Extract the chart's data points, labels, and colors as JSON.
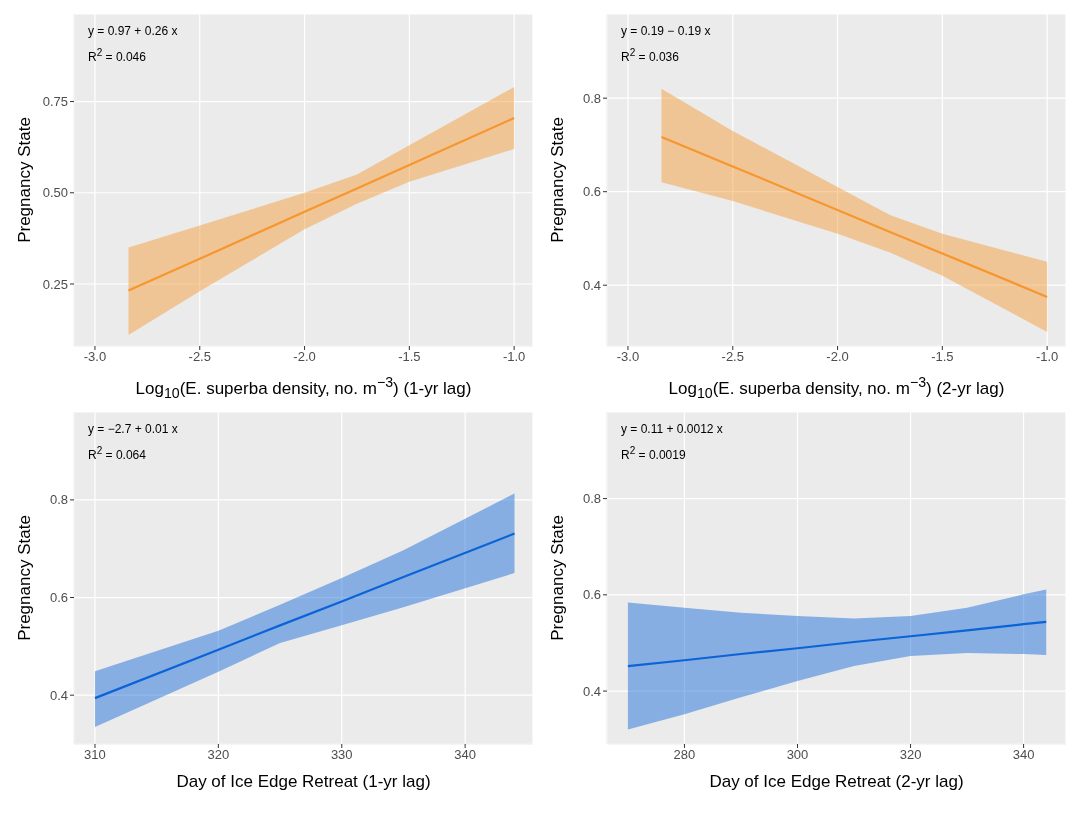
{
  "chart_data": [
    {
      "type": "line",
      "xlabel": "Log$_{10}$(E. superba density, no. m$^{−3}$) (1-yr lag)",
      "ylabel": "Pregnancy State",
      "annotations": [
        "y = 0.97 + 0.26 x",
        "R$^{2}$ = 0.046"
      ],
      "x": [
        -2.84,
        -2.5,
        -2.0,
        -1.75,
        -1.5,
        -1.0
      ],
      "series": [
        {
          "color": "#f7962e",
          "values": [
            0.232,
            0.319,
            0.448,
            0.512,
            0.576,
            0.705
          ],
          "lower": [
            0.11,
            0.23,
            0.4,
            0.47,
            0.53,
            0.62
          ],
          "upper": [
            0.35,
            0.41,
            0.5,
            0.55,
            0.63,
            0.79
          ]
        }
      ],
      "xlim": [
        -3.1,
        -0.91
      ],
      "xticks": [
        {
          "value": -3,
          "label": "-3.0"
        },
        -2.5,
        {
          "value": -2,
          "label": "-2.0"
        },
        -1.5,
        {
          "value": -1,
          "label": "-1.0"
        }
      ],
      "ylim": [
        0.08,
        0.99
      ],
      "yticks": [
        0.25,
        {
          "value": 0.5,
          "label": "0.50"
        },
        0.75
      ],
      "grid": true
    },
    {
      "type": "line",
      "xlabel": "Log$_{10}$(E. superba density, no. m$^{−3}$) (2-yr lag)",
      "ylabel": "Pregnancy State",
      "annotations": [
        "y = 0.19 − 0.19 x",
        "R$^{2}$ = 0.036"
      ],
      "x": [
        -2.84,
        -2.5,
        -2.0,
        -1.75,
        -1.5,
        -1.0
      ],
      "series": [
        {
          "color": "#f7962e",
          "values": [
            0.717,
            0.654,
            0.561,
            0.514,
            0.468,
            0.375
          ],
          "lower": [
            0.62,
            0.58,
            0.51,
            0.47,
            0.42,
            0.3
          ],
          "upper": [
            0.82,
            0.73,
            0.61,
            0.55,
            0.51,
            0.45
          ]
        }
      ],
      "xlim": [
        -3.1,
        -0.91
      ],
      "xticks": [
        {
          "value": -3,
          "label": "-3.0"
        },
        -2.5,
        {
          "value": -2,
          "label": "-2.0"
        },
        -1.5,
        {
          "value": -1,
          "label": "-1.0"
        }
      ],
      "ylim": [
        0.27,
        0.98
      ],
      "yticks": [
        0.4,
        0.6,
        0.8
      ],
      "grid": true
    },
    {
      "type": "line",
      "xlabel": "Day of Ice Edge Retreat (1-yr lag)",
      "ylabel": "Pregnancy State",
      "annotations": [
        "y = −2.7 + 0.01 x",
        "R$^{2}$ = 0.064"
      ],
      "x": [
        310,
        320,
        325,
        330,
        335,
        344
      ],
      "series": [
        {
          "color": "#0b63d6",
          "values": [
            0.394,
            0.493,
            0.543,
            0.592,
            0.642,
            0.731
          ],
          "lower": [
            0.335,
            0.448,
            0.507,
            0.543,
            0.58,
            0.65
          ],
          "upper": [
            0.449,
            0.532,
            0.585,
            0.64,
            0.697,
            0.813
          ]
        }
      ],
      "xlim": [
        308.3,
        345.5
      ],
      "xticks": [
        310,
        320,
        330,
        340
      ],
      "ylim": [
        0.3,
        0.98
      ],
      "yticks": [
        0.4,
        0.6,
        0.8
      ],
      "grid": true
    },
    {
      "type": "line",
      "xlabel": "Day of Ice Edge Retreat (2-yr lag)",
      "ylabel": "Pregnancy State",
      "annotations": [
        "y = 0.11 + 0.0012 x",
        "R$^{2}$ = 0.0019"
      ],
      "x": [
        270,
        280,
        290,
        300,
        310,
        320,
        330,
        340,
        344
      ],
      "series": [
        {
          "color": "#0b63d6",
          "values": [
            0.452,
            0.464,
            0.477,
            0.489,
            0.502,
            0.514,
            0.526,
            0.539,
            0.544
          ],
          "lower": [
            0.32,
            0.352,
            0.387,
            0.421,
            0.452,
            0.473,
            0.479,
            0.477,
            0.475
          ],
          "upper": [
            0.584,
            0.573,
            0.563,
            0.556,
            0.551,
            0.556,
            0.573,
            0.601,
            0.611
          ]
        }
      ],
      "xlim": [
        266.3,
        347.5
      ],
      "xticks": [
        280,
        300,
        320,
        340
      ],
      "ylim": [
        0.29,
        0.98
      ],
      "yticks": [
        0.4,
        0.6,
        0.8
      ],
      "grid": true
    }
  ]
}
